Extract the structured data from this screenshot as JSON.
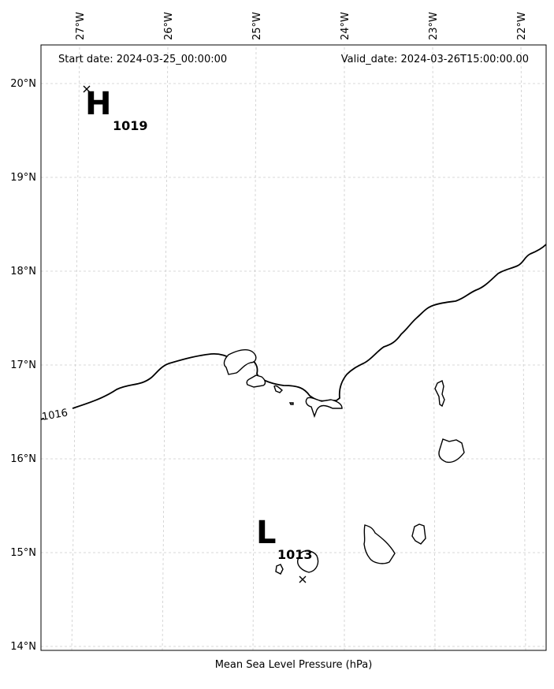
{
  "header": {
    "start_date": "Start date: 2024-03-25_00:00:00",
    "valid_date": "Valid_date: 2024-03-26T15:00:00.00"
  },
  "caption": "Mean Sea Level Pressure (hPa)",
  "longitude_ticks": [
    "27°W",
    "26°W",
    "25°W",
    "24°W",
    "23°W",
    "22°W"
  ],
  "latitude_ticks": [
    "20°N",
    "19°N",
    "18°N",
    "17°N",
    "16°N",
    "15°N",
    "14°N"
  ],
  "pressure_centers": [
    {
      "type": "high",
      "symbol": "H",
      "value": "1019"
    },
    {
      "type": "low",
      "symbol": "L",
      "value": "1013"
    }
  ],
  "isobars": [
    {
      "label": "1016"
    }
  ],
  "colors": {
    "gridline": "#cccccc",
    "coastline": "#000000",
    "isobar": "#000000"
  }
}
